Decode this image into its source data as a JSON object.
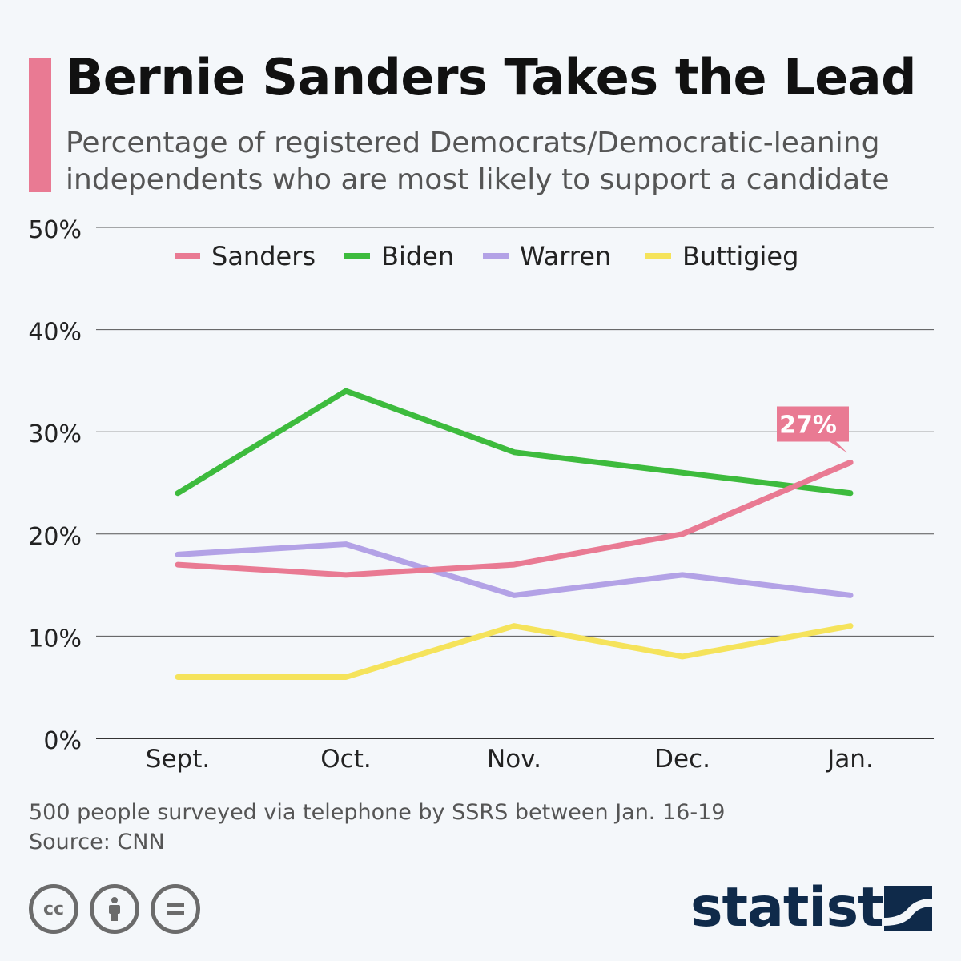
{
  "header": {
    "title": "Bernie Sanders Takes the Lead",
    "subtitle_line1": "Percentage of registered Democrats/Democratic-leaning",
    "subtitle_line2": "independents who are most likely to support a candidate"
  },
  "colors": {
    "accent": "#e97a93",
    "Sanders": "#e97a93",
    "Biden": "#3dbb3d",
    "Warren": "#b3a2e6",
    "Buttigieg": "#f5e35b"
  },
  "chart_data": {
    "type": "line",
    "categories": [
      "Sept.",
      "Oct.",
      "Nov.",
      "Dec.",
      "Jan."
    ],
    "series": [
      {
        "name": "Sanders",
        "values": [
          17,
          16,
          17,
          20,
          27
        ]
      },
      {
        "name": "Biden",
        "values": [
          24,
          34,
          28,
          26,
          24
        ]
      },
      {
        "name": "Warren",
        "values": [
          18,
          19,
          14,
          16,
          14
        ]
      },
      {
        "name": "Buttigieg",
        "values": [
          6,
          6,
          11,
          8,
          11
        ]
      }
    ],
    "yticks": [
      "0%",
      "10%",
      "20%",
      "30%",
      "40%",
      "50%"
    ],
    "ylim": [
      0,
      50
    ],
    "grid": true,
    "legend_position": "top",
    "annotation": {
      "series": "Sanders",
      "category": "Jan.",
      "label": "27%"
    }
  },
  "footer": {
    "note": "500 people surveyed via telephone by SSRS between Jan. 16-19",
    "source": "Source: CNN",
    "cc_icons": [
      "cc-icon",
      "attribution-icon",
      "no-derivatives-icon"
    ],
    "brand": "statista"
  }
}
